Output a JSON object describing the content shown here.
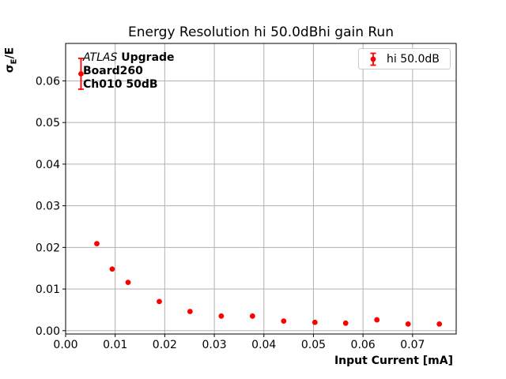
{
  "chart_data": {
    "type": "scatter",
    "title": "Energy Resolution hi 50.0dBhi gain Run",
    "xlabel": "Input Current [mA]",
    "ylabel": "σE/E",
    "ylabel_parts": {
      "sigma": "σ",
      "sub": "E",
      "rest": "/E"
    },
    "annotation": {
      "line1_italic": "ATLAS",
      "line1_bold": "Upgrade",
      "line2": "Board260",
      "line3": "Ch010 50dB"
    },
    "legend_entries": [
      "hi 50.0dB"
    ],
    "legend_position": "upper right",
    "grid": true,
    "grid_color": "#b0b0b0",
    "marker_color": "#ff0000",
    "axis_color": "#000000",
    "xlim": [
      0.0,
      0.0788
    ],
    "ylim": [
      -0.0008,
      0.069
    ],
    "x_ticks": [
      0.0,
      0.01,
      0.02,
      0.03,
      0.04,
      0.05,
      0.06,
      0.07
    ],
    "x_tick_labels": [
      "0.00",
      "0.01",
      "0.02",
      "0.03",
      "0.04",
      "0.05",
      "0.06",
      "0.07"
    ],
    "y_ticks": [
      0.0,
      0.01,
      0.02,
      0.03,
      0.04,
      0.05,
      0.06
    ],
    "y_tick_labels": [
      "0.00",
      "0.01",
      "0.02",
      "0.03",
      "0.04",
      "0.05",
      "0.06"
    ],
    "series": [
      {
        "name": "hi 50.0dB",
        "x": [
          0.0031,
          0.0063,
          0.0094,
          0.0126,
          0.0189,
          0.0251,
          0.0314,
          0.0377,
          0.044,
          0.0503,
          0.0565,
          0.0628,
          0.0691,
          0.0754
        ],
        "y": [
          0.0617,
          0.0209,
          0.0148,
          0.0116,
          0.007,
          0.0046,
          0.0035,
          0.0035,
          0.0023,
          0.002,
          0.0018,
          0.0026,
          0.0016,
          0.0016
        ],
        "yerr": [
          0.0037,
          0,
          0,
          0,
          0,
          0,
          0,
          0,
          0,
          0,
          0,
          0,
          0,
          0
        ]
      }
    ]
  }
}
